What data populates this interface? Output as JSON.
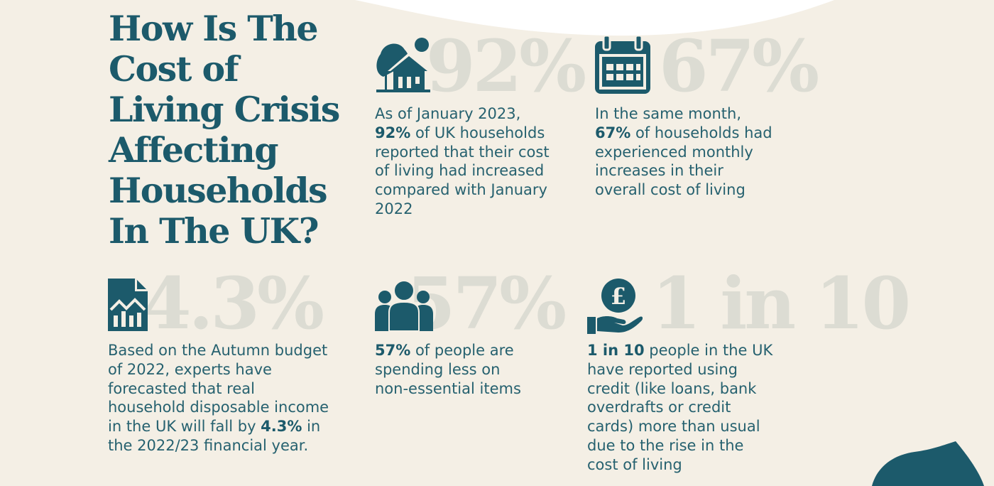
{
  "title": "How Is The Cost of Living Crisis Affecting Households In The UK?",
  "colors": {
    "background": "#f4efe5",
    "teal": "#1c5a6b",
    "faded_number": "#dcdcd3"
  },
  "stats": [
    {
      "big": "92%",
      "icon": "house-with-trees-icon",
      "lines": [
        [
          {
            "t": "As of January 2023,"
          }
        ],
        [
          {
            "t": "92%",
            "b": true
          },
          {
            "t": " of UK households"
          }
        ],
        [
          {
            "t": "reported that their cost"
          }
        ],
        [
          {
            "t": "of living had increased"
          }
        ],
        [
          {
            "t": "compared with January"
          }
        ],
        [
          {
            "t": "2022"
          }
        ]
      ]
    },
    {
      "big": "67%",
      "icon": "calendar-icon",
      "lines": [
        [
          {
            "t": "In the same month,"
          }
        ],
        [
          {
            "t": "67%",
            "b": true
          },
          {
            "t": " of households had"
          }
        ],
        [
          {
            "t": "experienced monthly"
          }
        ],
        [
          {
            "t": "increases in their"
          }
        ],
        [
          {
            "t": "overall cost of living"
          }
        ]
      ]
    },
    {
      "big": "4.3%",
      "icon": "document-chart-icon",
      "lines": [
        [
          {
            "t": "Based on the Autumn budget"
          }
        ],
        [
          {
            "t": "of 2022, experts have"
          }
        ],
        [
          {
            "t": "forecasted that real"
          }
        ],
        [
          {
            "t": "household disposable income"
          }
        ],
        [
          {
            "t": "in the UK will fall by "
          },
          {
            "t": "4.3%",
            "b": true
          },
          {
            "t": " in"
          }
        ],
        [
          {
            "t": "the 2022/23 financial year."
          }
        ]
      ]
    },
    {
      "big": "57%",
      "icon": "people-group-icon",
      "lines": [
        [
          {
            "t": "57%",
            "b": true
          },
          {
            "t": " of people are"
          }
        ],
        [
          {
            "t": "spending less on"
          }
        ],
        [
          {
            "t": "non-essential items"
          }
        ]
      ]
    },
    {
      "big": "1 in 10",
      "icon": "hand-pound-coin-icon",
      "lines": [
        [
          {
            "t": "1 in 10",
            "b": true
          },
          {
            "t": " people in the UK"
          }
        ],
        [
          {
            "t": "have reported using"
          }
        ],
        [
          {
            "t": "credit (like loans, bank"
          }
        ],
        [
          {
            "t": "overdrafts or credit"
          }
        ],
        [
          {
            "t": "cards) more than usual"
          }
        ],
        [
          {
            "t": "due to the rise in the"
          }
        ],
        [
          {
            "t": "cost of living"
          }
        ]
      ]
    }
  ]
}
